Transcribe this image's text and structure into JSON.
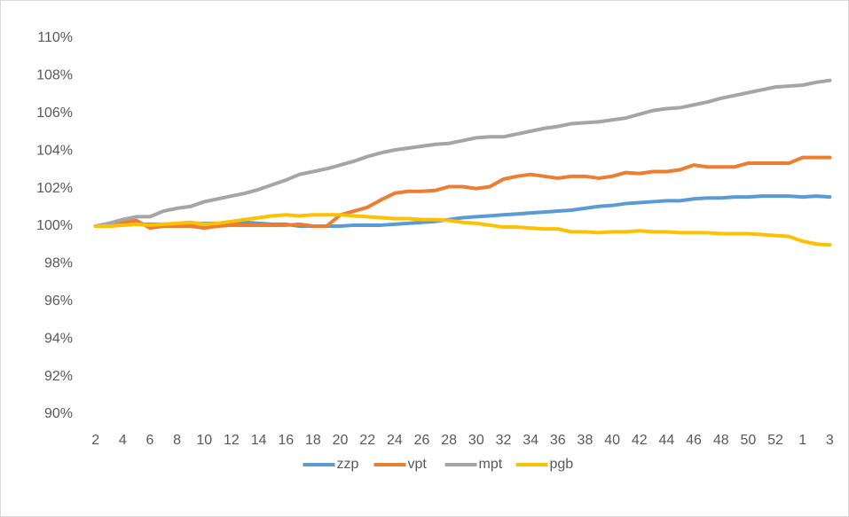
{
  "chart_data": {
    "type": "line",
    "categories": [
      "2",
      null,
      "4",
      null,
      "6",
      null,
      "8",
      null,
      "10",
      null,
      "12",
      null,
      "14",
      null,
      "16",
      null,
      "18",
      null,
      "20",
      null,
      "22",
      null,
      "24",
      null,
      "26",
      null,
      "28",
      null,
      "30",
      null,
      "32",
      null,
      "34",
      null,
      "36",
      null,
      "38",
      null,
      "40",
      null,
      "42",
      null,
      "44",
      null,
      "46",
      null,
      "48",
      null,
      "50",
      null,
      "52",
      null,
      "1",
      null,
      "3"
    ],
    "series": [
      {
        "name": "zzp",
        "color": "#5b9bd5",
        "values": [
          100,
          100,
          100.05,
          100.1,
          100.1,
          100.1,
          100.1,
          100.15,
          100.15,
          100.15,
          100.2,
          100.2,
          100.15,
          100.1,
          100.1,
          100,
          100,
          100,
          100,
          100.05,
          100.05,
          100.05,
          100.1,
          100.15,
          100.2,
          100.25,
          100.35,
          100.45,
          100.5,
          100.55,
          100.6,
          100.65,
          100.7,
          100.75,
          100.8,
          100.85,
          100.95,
          101.05,
          101.1,
          101.2,
          101.25,
          101.3,
          101.35,
          101.35,
          101.45,
          101.5,
          101.5,
          101.55,
          101.55,
          101.6,
          101.6,
          101.6,
          101.55,
          101.6,
          101.55
        ]
      },
      {
        "name": "vpt",
        "color": "#ed7d31",
        "values": [
          100,
          100.1,
          100.2,
          100.3,
          99.9,
          100,
          100,
          100,
          99.9,
          100,
          100.05,
          100.05,
          100.05,
          100.05,
          100.05,
          100.1,
          100,
          100,
          100.6,
          100.8,
          101,
          101.4,
          101.75,
          101.85,
          101.85,
          101.9,
          102.1,
          102.1,
          102,
          102.1,
          102.5,
          102.65,
          102.75,
          102.65,
          102.55,
          102.65,
          102.65,
          102.55,
          102.65,
          102.85,
          102.8,
          102.9,
          102.9,
          103,
          103.25,
          103.15,
          103.15,
          103.15,
          103.35,
          103.35,
          103.35,
          103.35,
          103.65,
          103.65,
          103.65
        ]
      },
      {
        "name": "mpt",
        "color": "#a5a5a5",
        "values": [
          100,
          100.15,
          100.35,
          100.5,
          100.5,
          100.8,
          100.95,
          101.05,
          101.3,
          101.45,
          101.6,
          101.75,
          101.95,
          102.2,
          102.45,
          102.75,
          102.9,
          103.05,
          103.25,
          103.45,
          103.7,
          103.9,
          104.05,
          104.15,
          104.25,
          104.35,
          104.4,
          104.55,
          104.7,
          104.75,
          104.75,
          104.9,
          105.05,
          105.2,
          105.3,
          105.45,
          105.5,
          105.55,
          105.65,
          105.75,
          105.95,
          106.15,
          106.25,
          106.3,
          106.45,
          106.6,
          106.8,
          106.95,
          107.1,
          107.25,
          107.4,
          107.45,
          107.5,
          107.65,
          107.75
        ]
      },
      {
        "name": "pgb",
        "color": "#ffc000",
        "values": [
          100,
          100,
          100.05,
          100.1,
          100.05,
          100.1,
          100.15,
          100.2,
          100.1,
          100.15,
          100.25,
          100.35,
          100.45,
          100.55,
          100.6,
          100.55,
          100.6,
          100.6,
          100.6,
          100.55,
          100.5,
          100.45,
          100.4,
          100.4,
          100.35,
          100.35,
          100.3,
          100.2,
          100.15,
          100.05,
          99.95,
          99.95,
          99.9,
          99.85,
          99.85,
          99.7,
          99.7,
          99.65,
          99.7,
          99.7,
          99.75,
          99.7,
          99.7,
          99.65,
          99.65,
          99.65,
          99.6,
          99.6,
          99.6,
          99.55,
          99.5,
          99.45,
          99.2,
          99.05,
          99
        ]
      }
    ],
    "ylim": [
      90,
      110
    ],
    "yticks": [
      {
        "value": 90,
        "label": "90%"
      },
      {
        "value": 92,
        "label": "92%"
      },
      {
        "value": 94,
        "label": "94%"
      },
      {
        "value": 96,
        "label": "96%"
      },
      {
        "value": 98,
        "label": "98%"
      },
      {
        "value": 100,
        "label": "100%"
      },
      {
        "value": 102,
        "label": "102%"
      },
      {
        "value": 104,
        "label": "104%"
      },
      {
        "value": 106,
        "label": "106%"
      },
      {
        "value": 108,
        "label": "108%"
      },
      {
        "value": 110,
        "label": "110%"
      }
    ],
    "grid": false,
    "legend": "bottom"
  }
}
